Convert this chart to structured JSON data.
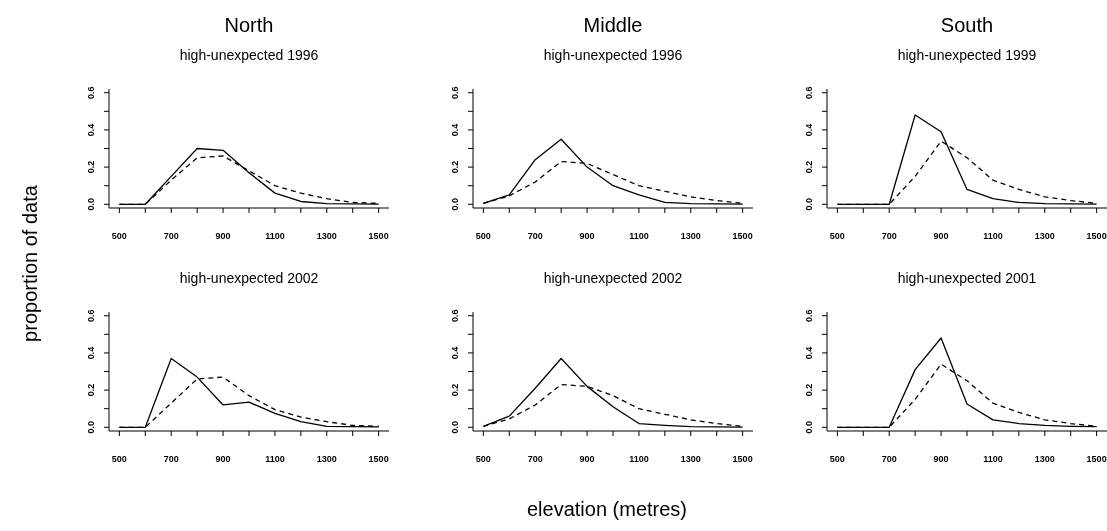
{
  "chart_data": [
    {
      "type": "line",
      "title": "North",
      "subtitle": "high-unexpected 1996",
      "ylabel": "proportion of data",
      "x": [
        500,
        600,
        700,
        800,
        900,
        1000,
        1100,
        1200,
        1300,
        1400,
        1500
      ],
      "xlim": [
        460,
        1540
      ],
      "ylim": [
        -0.02,
        0.62
      ],
      "xticks": [
        500,
        {
          "value": 600,
          "label": null
        },
        700,
        {
          "value": 800,
          "label": null
        },
        900,
        {
          "value": 1000,
          "label": null
        },
        1100,
        {
          "value": 1200,
          "label": null
        },
        1300,
        {
          "value": 1400,
          "label": null
        },
        1500
      ],
      "yticks": [
        {
          "value": 0,
          "label": "0.0"
        },
        {
          "value": 0.1,
          "label": null
        },
        {
          "value": 0.2,
          "label": "0.2"
        },
        {
          "value": 0.3,
          "label": null
        },
        {
          "value": 0.4,
          "label": "0.4"
        },
        {
          "value": 0.5,
          "label": null
        },
        {
          "value": 0.6,
          "label": "0.6"
        }
      ],
      "grid": false,
      "legend": false,
      "marker": "none",
      "series": [
        {
          "color": "#000000",
          "line_style": "solid",
          "values": [
            0,
            0,
            0.15,
            0.3,
            0.29,
            0.17,
            0.06,
            0.015,
            0.003,
            0.002,
            0.001
          ]
        },
        {
          "color": "#000000",
          "line_style": "dashed",
          "values": [
            0,
            0,
            0.13,
            0.25,
            0.26,
            0.18,
            0.1,
            0.06,
            0.03,
            0.01,
            0.005
          ]
        }
      ]
    },
    {
      "type": "line",
      "title": "Middle",
      "subtitle": "high-unexpected 1996",
      "x": [
        500,
        600,
        700,
        800,
        900,
        1000,
        1100,
        1200,
        1300,
        1400,
        1500
      ],
      "xlim": [
        460,
        1540
      ],
      "ylim": [
        -0.02,
        0.62
      ],
      "xticks": [
        500,
        {
          "value": 600,
          "label": null
        },
        700,
        {
          "value": 800,
          "label": null
        },
        900,
        {
          "value": 1000,
          "label": null
        },
        1100,
        {
          "value": 1200,
          "label": null
        },
        1300,
        {
          "value": 1400,
          "label": null
        },
        1500
      ],
      "yticks": [
        {
          "value": 0,
          "label": "0.0"
        },
        {
          "value": 0.1,
          "label": null
        },
        {
          "value": 0.2,
          "label": "0.2"
        },
        {
          "value": 0.3,
          "label": null
        },
        {
          "value": 0.4,
          "label": "0.4"
        },
        {
          "value": 0.5,
          "label": null
        },
        {
          "value": 0.6,
          "label": "0.6"
        }
      ],
      "grid": false,
      "legend": false,
      "marker": "none",
      "series": [
        {
          "color": "#000000",
          "line_style": "solid",
          "values": [
            0.005,
            0.05,
            0.24,
            0.35,
            0.2,
            0.1,
            0.05,
            0.01,
            0.003,
            0.002,
            0.001
          ]
        },
        {
          "color": "#000000",
          "line_style": "dashed",
          "values": [
            0.005,
            0.045,
            0.12,
            0.23,
            0.22,
            0.16,
            0.1,
            0.07,
            0.04,
            0.02,
            0.005
          ]
        }
      ]
    },
    {
      "type": "line",
      "title": "South",
      "subtitle": "high-unexpected 1999",
      "x": [
        500,
        600,
        700,
        800,
        900,
        1000,
        1100,
        1200,
        1300,
        1400,
        1500
      ],
      "xlim": [
        460,
        1540
      ],
      "ylim": [
        -0.02,
        0.62
      ],
      "xticks": [
        500,
        {
          "value": 600,
          "label": null
        },
        700,
        {
          "value": 800,
          "label": null
        },
        900,
        {
          "value": 1000,
          "label": null
        },
        1100,
        {
          "value": 1200,
          "label": null
        },
        1300,
        {
          "value": 1400,
          "label": null
        },
        1500
      ],
      "yticks": [
        {
          "value": 0,
          "label": "0.0"
        },
        {
          "value": 0.1,
          "label": null
        },
        {
          "value": 0.2,
          "label": "0.2"
        },
        {
          "value": 0.3,
          "label": null
        },
        {
          "value": 0.4,
          "label": "0.4"
        },
        {
          "value": 0.5,
          "label": null
        },
        {
          "value": 0.6,
          "label": "0.6"
        }
      ],
      "grid": false,
      "legend": false,
      "marker": "none",
      "series": [
        {
          "color": "#000000",
          "line_style": "solid",
          "values": [
            0,
            0,
            0,
            0.48,
            0.39,
            0.08,
            0.03,
            0.01,
            0.003,
            0.002,
            0.001
          ]
        },
        {
          "color": "#000000",
          "line_style": "dashed",
          "values": [
            0,
            0,
            0,
            0.15,
            0.34,
            0.25,
            0.13,
            0.08,
            0.04,
            0.02,
            0.005
          ]
        }
      ]
    },
    {
      "type": "line",
      "subtitle": "high-unexpected 2002",
      "x": [
        500,
        600,
        700,
        800,
        900,
        1000,
        1100,
        1200,
        1300,
        1400,
        1500
      ],
      "xlim": [
        460,
        1540
      ],
      "ylim": [
        -0.02,
        0.62
      ],
      "xticks": [
        500,
        {
          "value": 600,
          "label": null
        },
        700,
        {
          "value": 800,
          "label": null
        },
        900,
        {
          "value": 1000,
          "label": null
        },
        1100,
        {
          "value": 1200,
          "label": null
        },
        1300,
        {
          "value": 1400,
          "label": null
        },
        1500
      ],
      "yticks": [
        {
          "value": 0,
          "label": "0.0"
        },
        {
          "value": 0.1,
          "label": null
        },
        {
          "value": 0.2,
          "label": "0.2"
        },
        {
          "value": 0.3,
          "label": null
        },
        {
          "value": 0.4,
          "label": "0.4"
        },
        {
          "value": 0.5,
          "label": null
        },
        {
          "value": 0.6,
          "label": "0.6"
        }
      ],
      "grid": false,
      "legend": false,
      "marker": "none",
      "series": [
        {
          "color": "#000000",
          "line_style": "solid",
          "values": [
            0,
            0,
            0.37,
            0.27,
            0.12,
            0.135,
            0.075,
            0.03,
            0.005,
            0.003,
            0.002
          ]
        },
        {
          "color": "#000000",
          "line_style": "dashed",
          "values": [
            0,
            0,
            0.13,
            0.26,
            0.27,
            0.17,
            0.095,
            0.055,
            0.03,
            0.01,
            0.005
          ]
        }
      ]
    },
    {
      "type": "line",
      "subtitle": "high-unexpected 2002",
      "xlabel": "elevation (metres)",
      "x": [
        500,
        600,
        700,
        800,
        900,
        1000,
        1100,
        1200,
        1300,
        1400,
        1500
      ],
      "xlim": [
        460,
        1540
      ],
      "ylim": [
        -0.02,
        0.62
      ],
      "xticks": [
        500,
        {
          "value": 600,
          "label": null
        },
        700,
        {
          "value": 800,
          "label": null
        },
        900,
        {
          "value": 1000,
          "label": null
        },
        1100,
        {
          "value": 1200,
          "label": null
        },
        1300,
        {
          "value": 1400,
          "label": null
        },
        1500
      ],
      "yticks": [
        {
          "value": 0,
          "label": "0.0"
        },
        {
          "value": 0.1,
          "label": null
        },
        {
          "value": 0.2,
          "label": "0.2"
        },
        {
          "value": 0.3,
          "label": null
        },
        {
          "value": 0.4,
          "label": "0.4"
        },
        {
          "value": 0.5,
          "label": null
        },
        {
          "value": 0.6,
          "label": "0.6"
        }
      ],
      "grid": false,
      "legend": false,
      "marker": "none",
      "series": [
        {
          "color": "#000000",
          "line_style": "solid",
          "values": [
            0.005,
            0.06,
            0.21,
            0.37,
            0.22,
            0.11,
            0.02,
            0.01,
            0.003,
            0.002,
            0.001
          ]
        },
        {
          "color": "#000000",
          "line_style": "dashed",
          "values": [
            0.005,
            0.045,
            0.12,
            0.23,
            0.22,
            0.17,
            0.1,
            0.07,
            0.04,
            0.02,
            0.005
          ]
        }
      ]
    },
    {
      "type": "line",
      "subtitle": "high-unexpected 2001",
      "x": [
        500,
        600,
        700,
        800,
        900,
        1000,
        1100,
        1200,
        1300,
        1400,
        1500
      ],
      "xlim": [
        460,
        1540
      ],
      "ylim": [
        -0.02,
        0.62
      ],
      "xticks": [
        500,
        {
          "value": 600,
          "label": null
        },
        700,
        {
          "value": 800,
          "label": null
        },
        900,
        {
          "value": 1000,
          "label": null
        },
        1100,
        {
          "value": 1200,
          "label": null
        },
        1300,
        {
          "value": 1400,
          "label": null
        },
        1500
      ],
      "yticks": [
        {
          "value": 0,
          "label": "0.0"
        },
        {
          "value": 0.1,
          "label": null
        },
        {
          "value": 0.2,
          "label": "0.2"
        },
        {
          "value": 0.3,
          "label": null
        },
        {
          "value": 0.4,
          "label": "0.4"
        },
        {
          "value": 0.5,
          "label": null
        },
        {
          "value": 0.6,
          "label": "0.6"
        }
      ],
      "grid": false,
      "legend": false,
      "marker": "none",
      "series": [
        {
          "color": "#000000",
          "line_style": "solid",
          "values": [
            0,
            0,
            0,
            0.31,
            0.48,
            0.125,
            0.04,
            0.02,
            0.01,
            0.005,
            0.003
          ]
        },
        {
          "color": "#000000",
          "line_style": "dashed",
          "values": [
            0,
            0,
            0,
            0.15,
            0.34,
            0.25,
            0.13,
            0.08,
            0.04,
            0.02,
            0.005
          ]
        }
      ]
    }
  ]
}
